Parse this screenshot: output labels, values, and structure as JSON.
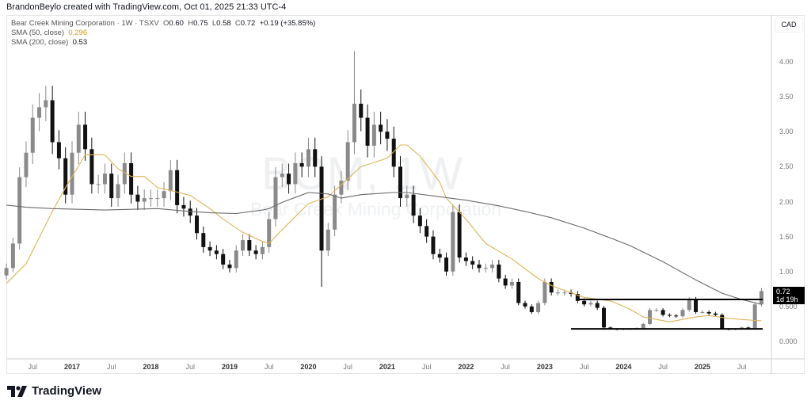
{
  "header": {
    "credit": "BrandonBeylo created with TradingView.com, Oct 01, 2025 21:33 UTC-4"
  },
  "legend": {
    "symbol": "Bear Creek Mining Corporation · 1W · TSXV",
    "o_label": "O",
    "o": "0.60",
    "h_label": "H",
    "h": "0.75",
    "l_label": "L",
    "l": "0.58",
    "c_label": "C",
    "c": "0.72",
    "change": "+0.19 (+35.85%)",
    "sma50_label": "SMA (50, close)",
    "sma50_value": "0.296",
    "sma200_label": "SMA (200, close)",
    "sma200_value": "0.53"
  },
  "watermark": {
    "ticker": "BCM, 1W",
    "name": "Bear Creek Mining Corporation"
  },
  "currency": "CAD",
  "last_price": {
    "price": "0.72",
    "countdown": "1d 19h"
  },
  "brand": "TradingView",
  "colors": {
    "up": "#8a8a8a",
    "down": "#111111",
    "sma50": "#e0b35a",
    "sma200": "#6b6b6b",
    "levels": "#000000"
  },
  "chart_data": {
    "type": "candlestick",
    "timeframe": "1W",
    "ylim": [
      -0.25,
      4.6
    ],
    "y_ticks": [
      "4.00",
      "3.50",
      "3.00",
      "2.50",
      "2.00",
      "1.50",
      "1.00",
      "0.500",
      "0.000"
    ],
    "x_ticks": [
      {
        "label": "Jul",
        "date": "2016-07"
      },
      {
        "label": "2017",
        "date": "2017-01"
      },
      {
        "label": "Jul",
        "date": "2017-07"
      },
      {
        "label": "2018",
        "date": "2018-01"
      },
      {
        "label": "Jul",
        "date": "2018-07"
      },
      {
        "label": "2019",
        "date": "2019-01"
      },
      {
        "label": "Jul",
        "date": "2019-07"
      },
      {
        "label": "2020",
        "date": "2020-01"
      },
      {
        "label": "Jul",
        "date": "2020-07"
      },
      {
        "label": "2021",
        "date": "2021-01"
      },
      {
        "label": "Jul",
        "date": "2021-07"
      },
      {
        "label": "2022",
        "date": "2022-01"
      },
      {
        "label": "Jul",
        "date": "2022-07"
      },
      {
        "label": "2023",
        "date": "2023-01"
      },
      {
        "label": "Jul",
        "date": "2023-07"
      },
      {
        "label": "2024",
        "date": "2024-01"
      },
      {
        "label": "Jul",
        "date": "2024-07"
      },
      {
        "label": "2025",
        "date": "2025-01"
      },
      {
        "label": "Jul",
        "date": "2025-07"
      }
    ],
    "price_start": "2016-03",
    "price_closes": [
      1.05,
      1.4,
      2.35,
      2.7,
      3.2,
      3.35,
      3.45,
      2.85,
      2.62,
      2.1,
      2.7,
      3.1,
      2.75,
      2.25,
      2.25,
      2.4,
      2.05,
      2.25,
      2.55,
      2.1,
      2.0,
      2.05,
      2.05,
      2.05,
      2.15,
      2.45,
      1.95,
      1.9,
      1.8,
      1.55,
      1.35,
      1.3,
      1.25,
      1.1,
      1.05,
      1.3,
      1.45,
      1.3,
      1.25,
      1.35,
      1.75,
      2.35,
      2.4,
      2.25,
      2.55,
      2.5,
      2.75,
      2.5,
      1.3,
      1.6,
      2.1,
      2.3,
      2.85,
      3.4,
      3.2,
      2.8,
      3.1,
      3.0,
      2.9,
      2.5,
      2.05,
      2.1,
      1.8,
      1.65,
      1.5,
      1.25,
      1.2,
      1.0,
      1.85,
      1.2,
      1.15,
      1.1,
      1.05,
      1.05,
      1.1,
      0.9,
      0.8,
      0.85,
      0.55,
      0.5,
      0.42,
      0.55,
      0.85,
      0.7,
      0.7,
      0.7,
      0.68,
      0.58,
      0.53,
      0.55,
      0.48,
      0.2,
      0.18,
      0.17,
      0.18,
      0.18,
      0.19,
      0.25,
      0.45,
      0.45,
      0.38,
      0.37,
      0.36,
      0.45,
      0.6,
      0.42,
      0.42,
      0.4,
      0.38,
      0.18,
      0.17,
      0.18,
      0.2,
      0.19,
      0.53,
      0.72
    ],
    "notable": {
      "high": {
        "date": "2020-08",
        "value": 4.15
      },
      "low": {
        "date": "2020-03",
        "value": 0.78
      }
    },
    "series": [
      {
        "name": "SMA (50, close)",
        "points": [
          [
            "2016-03",
            0.83
          ],
          [
            "2016-06",
            1.11
          ],
          [
            "2016-10",
            1.86
          ],
          [
            "2016-12",
            2.2
          ],
          [
            "2017-03",
            2.67
          ],
          [
            "2017-06",
            2.67
          ],
          [
            "2017-08",
            2.47
          ],
          [
            "2017-10",
            2.36
          ],
          [
            "2017-12",
            2.36
          ],
          [
            "2018-02",
            2.2
          ],
          [
            "2018-04",
            2.16
          ],
          [
            "2018-07",
            2.09
          ],
          [
            "2018-10",
            1.9
          ],
          [
            "2018-12",
            1.75
          ],
          [
            "2019-03",
            1.56
          ],
          [
            "2019-06",
            1.43
          ],
          [
            "2019-07",
            1.4
          ],
          [
            "2019-09",
            1.6
          ],
          [
            "2020-01",
            1.97
          ],
          [
            "2020-04",
            2.07
          ],
          [
            "2020-06",
            2.24
          ],
          [
            "2020-09",
            2.5
          ],
          [
            "2021-01",
            2.62
          ],
          [
            "2021-03",
            2.81
          ],
          [
            "2021-04",
            2.81
          ],
          [
            "2021-06",
            2.65
          ],
          [
            "2021-09",
            2.28
          ],
          [
            "2021-10",
            2.05
          ],
          [
            "2022-01",
            1.75
          ],
          [
            "2022-04",
            1.4
          ],
          [
            "2022-08",
            1.18
          ],
          [
            "2022-12",
            0.9
          ],
          [
            "2023-02",
            0.8
          ],
          [
            "2023-04",
            0.73
          ],
          [
            "2023-07",
            0.63
          ],
          [
            "2023-11",
            0.58
          ],
          [
            "2024-02",
            0.46
          ],
          [
            "2024-04",
            0.35
          ],
          [
            "2024-08",
            0.28
          ],
          [
            "2024-12",
            0.35
          ],
          [
            "2025-02",
            0.37
          ],
          [
            "2025-05",
            0.33
          ],
          [
            "2025-09",
            0.3
          ],
          [
            "2025-10",
            0.296
          ]
        ]
      },
      {
        "name": "SMA (200, close)",
        "points": [
          [
            "2016-03",
            1.95
          ],
          [
            "2016-06",
            1.92
          ],
          [
            "2016-10",
            1.9
          ],
          [
            "2017-06",
            1.88
          ],
          [
            "2018-02",
            1.9
          ],
          [
            "2018-07",
            1.86
          ],
          [
            "2018-10",
            1.84
          ],
          [
            "2019-02",
            1.83
          ],
          [
            "2019-06",
            1.88
          ],
          [
            "2019-07",
            1.9
          ],
          [
            "2019-09",
            1.99
          ],
          [
            "2020-01",
            2.13
          ],
          [
            "2020-04",
            2.11
          ],
          [
            "2020-06",
            2.05
          ],
          [
            "2020-09",
            2.1
          ],
          [
            "2021-02",
            2.13
          ],
          [
            "2021-04",
            2.13
          ],
          [
            "2021-09",
            2.07
          ],
          [
            "2022-01",
            2.02
          ],
          [
            "2022-06",
            1.94
          ],
          [
            "2022-10",
            1.86
          ],
          [
            "2023-02",
            1.77
          ],
          [
            "2023-07",
            1.62
          ],
          [
            "2023-11",
            1.48
          ],
          [
            "2024-02",
            1.37
          ],
          [
            "2024-07",
            1.14
          ],
          [
            "2024-12",
            0.88
          ],
          [
            "2025-04",
            0.69
          ],
          [
            "2025-07",
            0.6
          ],
          [
            "2025-10",
            0.53
          ]
        ]
      }
    ],
    "horizontal_levels": [
      {
        "value": 0.6,
        "from": "2023-06",
        "to": "2025-10"
      },
      {
        "value": 0.18,
        "from": "2023-05",
        "to": "2025-10"
      }
    ]
  }
}
